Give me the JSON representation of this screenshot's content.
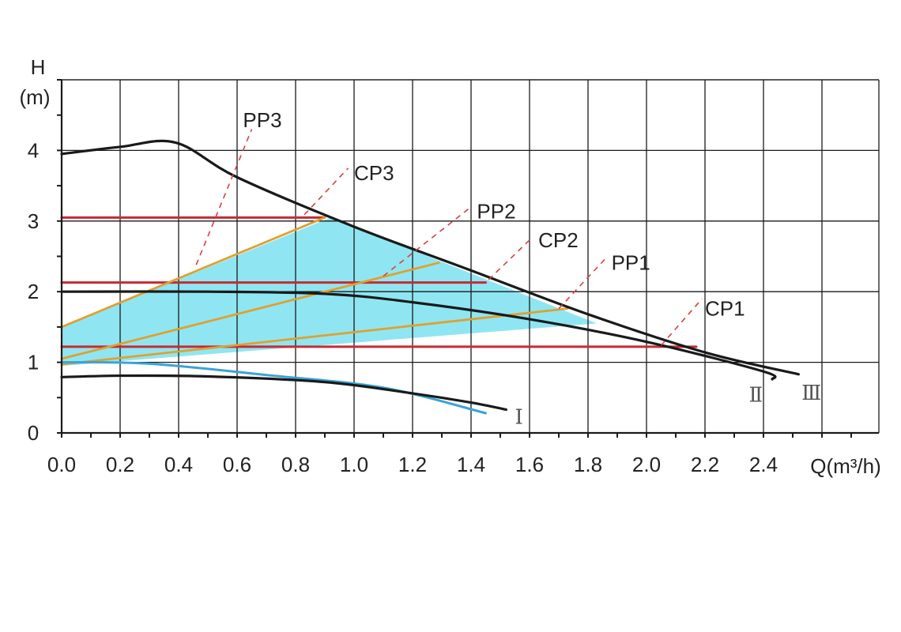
{
  "chart_data": {
    "type": "line",
    "xlabel": "Q(m³/h)",
    "ylabel": "H",
    "ylabel_unit": "(m)",
    "xlim": [
      0,
      2.8
    ],
    "ylim": [
      0,
      5
    ],
    "x_tick_labels": [
      {
        "value": 0.0,
        "label": "0.0"
      },
      {
        "value": 0.2,
        "label": "0.2"
      },
      {
        "value": 0.4,
        "label": "0.4"
      },
      {
        "value": 0.6,
        "label": "0.6"
      },
      {
        "value": 0.8,
        "label": "0.8"
      },
      {
        "value": 1.0,
        "label": "1.0"
      },
      {
        "value": 1.2,
        "label": "1.2"
      },
      {
        "value": 1.4,
        "label": "1.4"
      },
      {
        "value": 1.6,
        "label": "1.6"
      },
      {
        "value": 1.8,
        "label": "1.8"
      },
      {
        "value": 2.0,
        "label": "2.0"
      },
      {
        "value": 2.2,
        "label": "2.2"
      },
      {
        "value": 2.4,
        "label": "2.4"
      }
    ],
    "y_tick_labels": [
      {
        "value": 0,
        "label": "0"
      },
      {
        "value": 1,
        "label": "1"
      },
      {
        "value": 2,
        "label": "2"
      },
      {
        "value": 3,
        "label": "3"
      },
      {
        "value": 4,
        "label": "4"
      }
    ],
    "grid": true,
    "colors": {
      "curve": "#1a1a1a",
      "constant_pressure": "#c62b33",
      "proportional_pressure": "#e0a030",
      "speed_one_blue": "#3aa3d6",
      "operating_area": "#8fe6f2",
      "dash_leader": "#d94040",
      "grid": "#1a1a1a"
    },
    "operating_area": [
      [
        0.0,
        1.5
      ],
      [
        0.92,
        3.05
      ],
      [
        1.83,
        1.55
      ],
      [
        0.0,
        0.95
      ]
    ],
    "series": [
      {
        "name": "Ⅲ",
        "style": "speed",
        "points": [
          [
            0.0,
            3.95
          ],
          [
            0.2,
            4.05
          ],
          [
            0.39,
            4.11
          ],
          [
            0.6,
            3.62
          ],
          [
            1.0,
            2.92
          ],
          [
            1.4,
            2.3
          ],
          [
            1.8,
            1.68
          ],
          [
            2.2,
            1.14
          ],
          [
            2.52,
            0.83
          ]
        ]
      },
      {
        "name": "Ⅱ",
        "style": "speed",
        "points": [
          [
            0.0,
            2.0
          ],
          [
            0.5,
            2.0
          ],
          [
            0.9,
            1.97
          ],
          [
            1.2,
            1.85
          ],
          [
            1.6,
            1.61
          ],
          [
            2.0,
            1.29
          ],
          [
            2.4,
            0.87
          ],
          [
            2.43,
            0.76
          ]
        ]
      },
      {
        "name": "Ⅰ",
        "style": "speed",
        "points": [
          [
            0.0,
            0.79
          ],
          [
            0.2,
            0.81
          ],
          [
            0.5,
            0.8
          ],
          [
            0.9,
            0.72
          ],
          [
            1.2,
            0.56
          ],
          [
            1.4,
            0.43
          ],
          [
            1.52,
            0.33
          ]
        ]
      },
      {
        "name": "",
        "style": "blue",
        "points": [
          [
            0.0,
            1.0
          ],
          [
            0.3,
            0.98
          ],
          [
            0.7,
            0.82
          ],
          [
            1.1,
            0.64
          ],
          [
            1.45,
            0.28
          ]
        ]
      },
      {
        "name": "CP3",
        "style": "cp",
        "points": [
          [
            0.0,
            3.05
          ],
          [
            0.9,
            3.05
          ]
        ]
      },
      {
        "name": "CP2",
        "style": "cp",
        "points": [
          [
            0.0,
            2.13
          ],
          [
            1.45,
            2.13
          ]
        ]
      },
      {
        "name": "CP1",
        "style": "cp",
        "points": [
          [
            0.0,
            1.22
          ],
          [
            2.17,
            1.22
          ]
        ]
      },
      {
        "name": "PP3",
        "style": "pp",
        "points": [
          [
            0.0,
            1.5
          ],
          [
            0.9,
            3.05
          ]
        ]
      },
      {
        "name": "PP2",
        "style": "pp",
        "points": [
          [
            0.0,
            1.05
          ],
          [
            1.29,
            2.41
          ]
        ]
      },
      {
        "name": "PP1",
        "style": "pp",
        "points": [
          [
            0.0,
            0.97
          ],
          [
            1.73,
            1.76
          ]
        ]
      }
    ],
    "annotations": [
      {
        "text": "PP3",
        "kind": "leader",
        "anchor": [
          0.62,
          4.43
        ],
        "from": [
          0.46,
          2.38
        ],
        "to": [
          0.65,
          4.3
        ]
      },
      {
        "text": "CP3",
        "kind": "leader",
        "anchor": [
          1.0,
          3.68
        ],
        "from": [
          0.83,
          3.09
        ],
        "to": [
          0.98,
          3.75
        ]
      },
      {
        "text": "PP2",
        "kind": "leader",
        "anchor": [
          1.42,
          3.14
        ],
        "from": [
          1.1,
          2.22
        ],
        "to": [
          1.4,
          3.2
        ]
      },
      {
        "text": "CP2",
        "kind": "leader",
        "anchor": [
          1.63,
          2.73
        ],
        "from": [
          1.46,
          2.17
        ],
        "to": [
          1.61,
          2.77
        ]
      },
      {
        "text": "PP1",
        "kind": "leader",
        "anchor": [
          1.88,
          2.41
        ],
        "from": [
          1.7,
          1.76
        ],
        "to": [
          1.86,
          2.47
        ]
      },
      {
        "text": "CP1",
        "kind": "leader",
        "anchor": [
          2.2,
          1.76
        ],
        "from": [
          2.05,
          1.24
        ],
        "to": [
          2.19,
          1.9
        ]
      },
      {
        "text": "Ⅰ",
        "kind": "roman",
        "anchor": [
          1.55,
          0.23
        ]
      },
      {
        "text": "Ⅱ",
        "kind": "roman",
        "anchor": [
          2.35,
          0.54
        ]
      },
      {
        "text": "Ⅲ",
        "kind": "roman",
        "anchor": [
          2.53,
          0.57
        ]
      }
    ]
  }
}
